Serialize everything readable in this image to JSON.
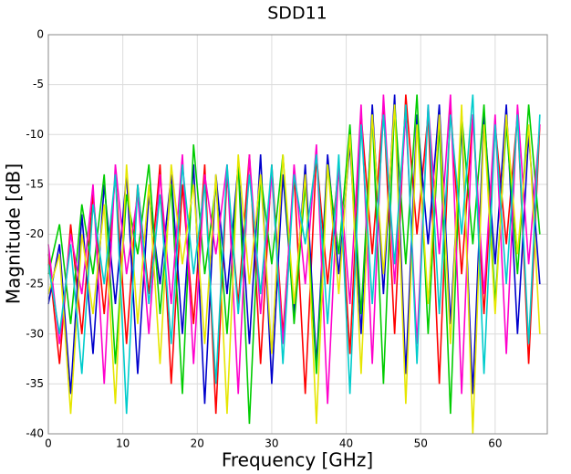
{
  "chart_data": {
    "type": "line",
    "title": "SDD11",
    "x_label": "Frequency [GHz]",
    "y_label": "Magnitude [dB]",
    "x": [
      0,
      1.5,
      3,
      4.5,
      6,
      7.5,
      9,
      10.5,
      12,
      13.5,
      15,
      16.5,
      18,
      19.5,
      21,
      22.5,
      24,
      25.5,
      27,
      28.5,
      30,
      31.5,
      33,
      34.5,
      36,
      37.5,
      39,
      40.5,
      42,
      43.5,
      45,
      46.5,
      48,
      49.5,
      51,
      52.5,
      54,
      55.5,
      57,
      58.5,
      60,
      61.5,
      63,
      64.5,
      66
    ],
    "series": [
      {
        "color": "#ff0000",
        "values": [
          -22,
          -33,
          -19,
          -30,
          -16,
          -28,
          -14,
          -31,
          -15,
          -26,
          -13,
          -35,
          -15,
          -29,
          -13,
          -38,
          -14,
          -27,
          -12,
          -33,
          -13,
          -30,
          -14,
          -36,
          -12,
          -25,
          -13,
          -32,
          -8,
          -22,
          -7,
          -30,
          -6,
          -20,
          -8,
          -35,
          -7,
          -24,
          -8,
          -28,
          -9,
          -21,
          -8,
          -33,
          -9
        ]
      },
      {
        "color": "#0000cc",
        "values": [
          -27,
          -21,
          -36,
          -18,
          -32,
          -15,
          -27,
          -14,
          -34,
          -16,
          -25,
          -14,
          -30,
          -13,
          -37,
          -14,
          -26,
          -13,
          -31,
          -12,
          -35,
          -14,
          -28,
          -13,
          -33,
          -12,
          -24,
          -11,
          -30,
          -7,
          -26,
          -6,
          -34,
          -8,
          -21,
          -7,
          -29,
          -9,
          -36,
          -8,
          -23,
          -7,
          -30,
          -10,
          -25
        ]
      },
      {
        "color": "#00cc00",
        "values": [
          -24,
          -19,
          -29,
          -17,
          -24,
          -14,
          -33,
          -16,
          -22,
          -13,
          -28,
          -15,
          -36,
          -11,
          -24,
          -15,
          -30,
          -13,
          -39,
          -14,
          -23,
          -12,
          -29,
          -15,
          -34,
          -13,
          -22,
          -9,
          -28,
          -8,
          -35,
          -7,
          -23,
          -6,
          -30,
          -9,
          -38,
          -8,
          -21,
          -7,
          -27,
          -9,
          -24,
          -7,
          -20
        ]
      },
      {
        "color": "#ff00cc",
        "values": [
          -21,
          -31,
          -20,
          -26,
          -15,
          -35,
          -13,
          -24,
          -16,
          -30,
          -14,
          -27,
          -12,
          -33,
          -14,
          -22,
          -13,
          -36,
          -12,
          -28,
          -14,
          -31,
          -13,
          -25,
          -11,
          -37,
          -13,
          -27,
          -7,
          -33,
          -6,
          -25,
          -8,
          -31,
          -7,
          -22,
          -6,
          -36,
          -8,
          -26,
          -8,
          -32,
          -7,
          -23,
          -9
        ]
      },
      {
        "color": "#e6e600",
        "values": [
          -26,
          -22,
          -38,
          -20,
          -28,
          -17,
          -37,
          -13,
          -29,
          -15,
          -33,
          -13,
          -23,
          -15,
          -31,
          -14,
          -38,
          -12,
          -25,
          -14,
          -32,
          -12,
          -27,
          -14,
          -39,
          -13,
          -26,
          -10,
          -34,
          -8,
          -24,
          -7,
          -37,
          -9,
          -27,
          -8,
          -31,
          -7,
          -40,
          -9,
          -28,
          -8,
          -22,
          -9,
          -30
        ]
      },
      {
        "color": "#00cccc",
        "values": [
          -23,
          -30,
          -21,
          -34,
          -17,
          -25,
          -14,
          -38,
          -15,
          -27,
          -16,
          -31,
          -13,
          -24,
          -15,
          -35,
          -13,
          -28,
          -14,
          -26,
          -13,
          -33,
          -14,
          -21,
          -12,
          -29,
          -12,
          -36,
          -9,
          -27,
          -8,
          -23,
          -7,
          -33,
          -7,
          -28,
          -8,
          -20,
          -6,
          -34,
          -9,
          -25,
          -8,
          -31,
          -8
        ]
      }
    ],
    "xlim": [
      0,
      67
    ],
    "ylim": [
      -40,
      0
    ],
    "xticks": [
      0,
      10,
      20,
      30,
      40,
      50,
      60
    ],
    "yticks": [
      0,
      -5,
      -10,
      -15,
      -20,
      -25,
      -30,
      -35,
      -40
    ],
    "grid": true
  }
}
